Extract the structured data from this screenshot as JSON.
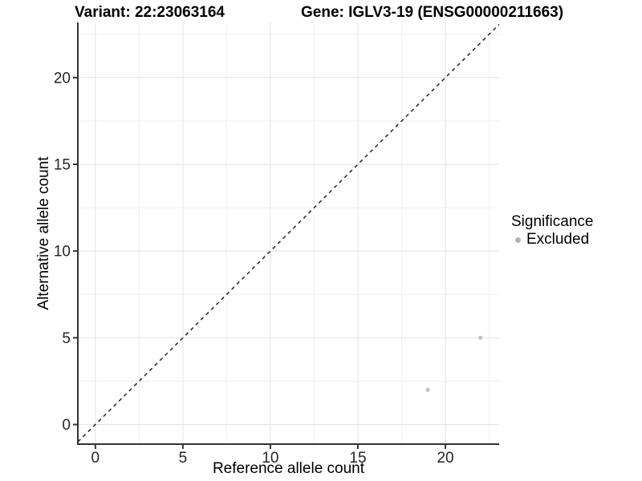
{
  "header": {
    "variant_title": "Variant: 22:23063164",
    "gene_title": "Gene: IGLV3-19 (ENSG00000211663)"
  },
  "chart_data": {
    "type": "scatter",
    "title_left": "Variant: 22:23063164",
    "title_right": "Gene: IGLV3-19 (ENSG00000211663)",
    "xlabel": "Reference allele count",
    "ylabel": "Alternative allele count",
    "xlim": [
      -1.0,
      23.07
    ],
    "ylim": [
      -1.13,
      23.18
    ],
    "x_ticks": [
      0,
      5,
      10,
      15,
      20
    ],
    "y_ticks": [
      0,
      5,
      10,
      15,
      20
    ],
    "x_minor_ticks": [
      2.5,
      7.5,
      12.5,
      17.5,
      22.5
    ],
    "y_minor_ticks": [
      2.5,
      7.5,
      12.5,
      17.5,
      22.5
    ],
    "grid": "major+minor",
    "series": [
      {
        "name": "Excluded",
        "color": "#c2c2c2",
        "points": [
          {
            "x": 19,
            "y": 2
          },
          {
            "x": 22,
            "y": 5
          }
        ]
      }
    ],
    "reference_line": {
      "kind": "identity y=x",
      "style": "dashed",
      "color": "#222222"
    },
    "legend": {
      "title": "Significance",
      "position": "right",
      "entries": [
        {
          "label": "Excluded",
          "color": "#b3b3b3"
        }
      ]
    },
    "style_colors": {
      "axis_line": "#333333",
      "tick_label": "#262626",
      "grid_major": "#e3e3e3",
      "grid_minor": "#f0f0f0",
      "background": "#ffffff"
    }
  }
}
